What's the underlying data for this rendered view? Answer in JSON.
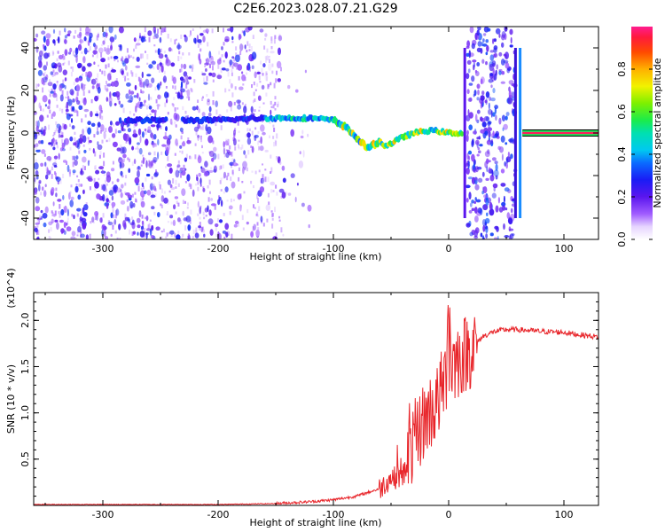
{
  "title": "C2E6.2023.028.07.21.G29",
  "chart_data": [
    {
      "type": "heatmap",
      "xlabel": "Height of straight line (km)",
      "ylabel": "Frequency (Hz)",
      "xlim": [
        -360,
        130
      ],
      "ylim": [
        -50,
        50
      ],
      "xticks": [
        "-300",
        "-200",
        "-100",
        "0",
        "100"
      ],
      "yticks": [
        "-40",
        "-20",
        "0",
        "20",
        "40"
      ],
      "colorbar": {
        "label": "Normalized spectral amplitude",
        "range": [
          0,
          1
        ],
        "ticks": [
          "0.0",
          "0.2",
          "0.4",
          "0.6",
          "0.8"
        ]
      },
      "signal_trace": {
        "height_km": [
          -280,
          -240,
          -200,
          -160,
          -120,
          -100,
          -90,
          -80,
          -75,
          -70,
          -60,
          -55,
          -50,
          -40,
          -30,
          -20,
          -10,
          0,
          10,
          12,
          62,
          80,
          100,
          130
        ],
        "frequency_hz": [
          6,
          6,
          6,
          7,
          7,
          6,
          3,
          -2,
          -5,
          -7,
          -4,
          -6,
          -5,
          -2,
          0,
          1,
          1,
          0,
          0,
          0,
          0,
          0,
          0,
          0
        ]
      },
      "noise_regions_km": [
        [
          -360,
          -160
        ],
        [
          16,
          58
        ]
      ]
    },
    {
      "type": "line",
      "xlabel": "Height of straight line (km)",
      "ylabel": "SNR (10 * v/v)",
      "y_multiplier": "(x10^4)",
      "xlim": [
        -360,
        130
      ],
      "ylim": [
        0,
        2.3
      ],
      "xticks": [
        "-300",
        "-200",
        "-100",
        "0",
        "100"
      ],
      "yticks": [
        "0.5",
        "1.0",
        "1.5",
        "2.0"
      ],
      "series": [
        {
          "color": "#e8252a",
          "x": [
            -360,
            -300,
            -250,
            -200,
            -150,
            -120,
            -100,
            -80,
            -60,
            -50,
            -40,
            -30,
            -20,
            -10,
            0,
            10,
            20,
            30,
            40,
            50,
            60,
            80,
            100,
            110,
            130
          ],
          "y": [
            0.01,
            0.01,
            0.01,
            0.01,
            0.02,
            0.04,
            0.06,
            0.1,
            0.18,
            0.3,
            0.3,
            0.7,
            0.95,
            1.1,
            1.5,
            1.6,
            1.7,
            1.83,
            1.88,
            1.9,
            1.9,
            1.88,
            1.87,
            1.85,
            1.82
          ]
        }
      ]
    }
  ]
}
